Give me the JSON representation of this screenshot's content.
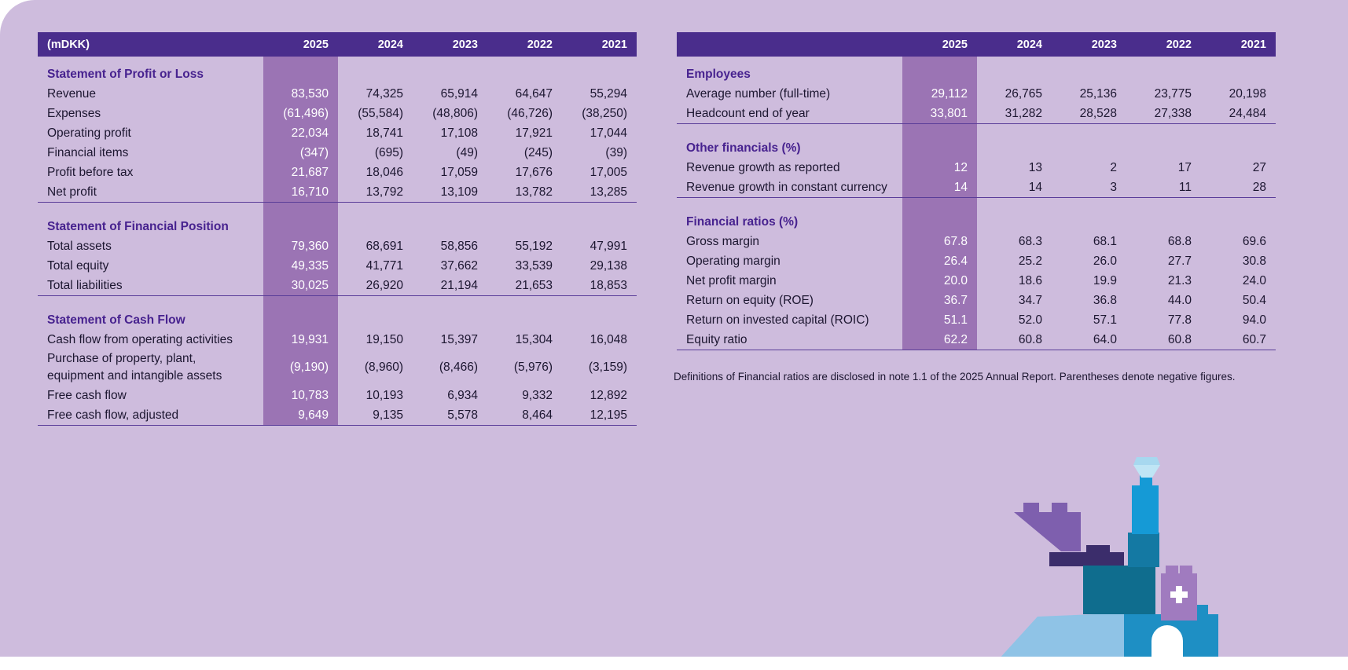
{
  "left": {
    "header": [
      "(mDKK)",
      "2025",
      "2024",
      "2023",
      "2022",
      "2021"
    ],
    "sections": [
      {
        "title": "Statement of Profit or Loss",
        "rows": [
          {
            "label": "Revenue",
            "values": [
              "83,530",
              "74,325",
              "65,914",
              "64,647",
              "55,294"
            ]
          },
          {
            "label": "Expenses",
            "values": [
              "(61,496)",
              "(55,584)",
              "(48,806)",
              "(46,726)",
              "(38,250)"
            ]
          },
          {
            "label": "Operating profit",
            "values": [
              "22,034",
              "18,741",
              "17,108",
              "17,921",
              "17,044"
            ]
          },
          {
            "label": "Financial items",
            "values": [
              "(347)",
              "(695)",
              "(49)",
              "(245)",
              "(39)"
            ]
          },
          {
            "label": "Profit before tax",
            "values": [
              "21,687",
              "18,046",
              "17,059",
              "17,676",
              "17,005"
            ]
          },
          {
            "label": "Net profit",
            "values": [
              "16,710",
              "13,792",
              "13,109",
              "13,782",
              "13,285"
            ]
          }
        ]
      },
      {
        "title": "Statement of Financial Position",
        "rows": [
          {
            "label": "Total assets",
            "values": [
              "79,360",
              "68,691",
              "58,856",
              "55,192",
              "47,991"
            ]
          },
          {
            "label": "Total equity",
            "values": [
              "49,335",
              "41,771",
              "37,662",
              "33,539",
              "29,138"
            ]
          },
          {
            "label": "Total liabilities",
            "values": [
              "30,025",
              "26,920",
              "21,194",
              "21,653",
              "18,853"
            ]
          }
        ]
      },
      {
        "title": "Statement of Cash Flow",
        "rows": [
          {
            "label": "Cash flow from operating activities",
            "values": [
              "19,931",
              "19,150",
              "15,397",
              "15,304",
              "16,048"
            ]
          },
          {
            "label": "Purchase of property, plant, equipment and intangible assets",
            "values": [
              "(9,190)",
              "(8,960)",
              "(8,466)",
              "(5,976)",
              "(3,159)"
            ]
          },
          {
            "label": "Free cash flow",
            "values": [
              "10,783",
              "10,193",
              "6,934",
              "9,332",
              "12,892"
            ]
          },
          {
            "label": "Free cash flow, adjusted",
            "values": [
              "9,649",
              "9,135",
              "5,578",
              "8,464",
              "12,195"
            ]
          }
        ]
      }
    ]
  },
  "right": {
    "header": [
      "",
      "2025",
      "2024",
      "2023",
      "2022",
      "2021"
    ],
    "sections": [
      {
        "title": "Employees",
        "rows": [
          {
            "label": "Average number (full-time)",
            "values": [
              "29,112",
              "26,765",
              "25,136",
              "23,775",
              "20,198"
            ]
          },
          {
            "label": "Headcount end of year",
            "values": [
              "33,801",
              "31,282",
              "28,528",
              "27,338",
              "24,484"
            ]
          }
        ]
      },
      {
        "title": "Other financials (%)",
        "rows": [
          {
            "label": "Revenue growth as reported",
            "values": [
              "12",
              "13",
              "2",
              "17",
              "27"
            ]
          },
          {
            "label": "Revenue growth in constant currency",
            "values": [
              "14",
              "14",
              "3",
              "11",
              "28"
            ]
          }
        ]
      },
      {
        "title": "Financial ratios (%)",
        "rows": [
          {
            "label": "Gross margin",
            "values": [
              "67.8",
              "68.3",
              "68.1",
              "68.8",
              "69.6"
            ]
          },
          {
            "label": "Operating margin",
            "values": [
              "26.4",
              "25.2",
              "26.0",
              "27.7",
              "30.8"
            ]
          },
          {
            "label": "Net profit margin",
            "values": [
              "20.0",
              "18.6",
              "19.9",
              "21.3",
              "24.0"
            ]
          },
          {
            "label": "Return on equity (ROE)",
            "values": [
              "36.7",
              "34.7",
              "36.8",
              "44.0",
              "50.4"
            ]
          },
          {
            "label": "Return on invested capital (ROIC)",
            "values": [
              "51.1",
              "52.0",
              "57.1",
              "77.8",
              "94.0"
            ]
          },
          {
            "label": "Equity ratio",
            "values": [
              "62.2",
              "60.8",
              "64.0",
              "60.8",
              "60.7"
            ]
          }
        ]
      }
    ],
    "footnote": "Definitions of Financial ratios are disclosed in note 1.1 of the 2025 Annual Report. Parentheses denote negative figures."
  },
  "colors": {
    "background": "#cebcdd",
    "header": "#4a2d8c",
    "highlight_column": "#9b74b4",
    "section_title": "#47228f"
  },
  "illustration_icon": "building-blocks-tower-with-medical-cross"
}
